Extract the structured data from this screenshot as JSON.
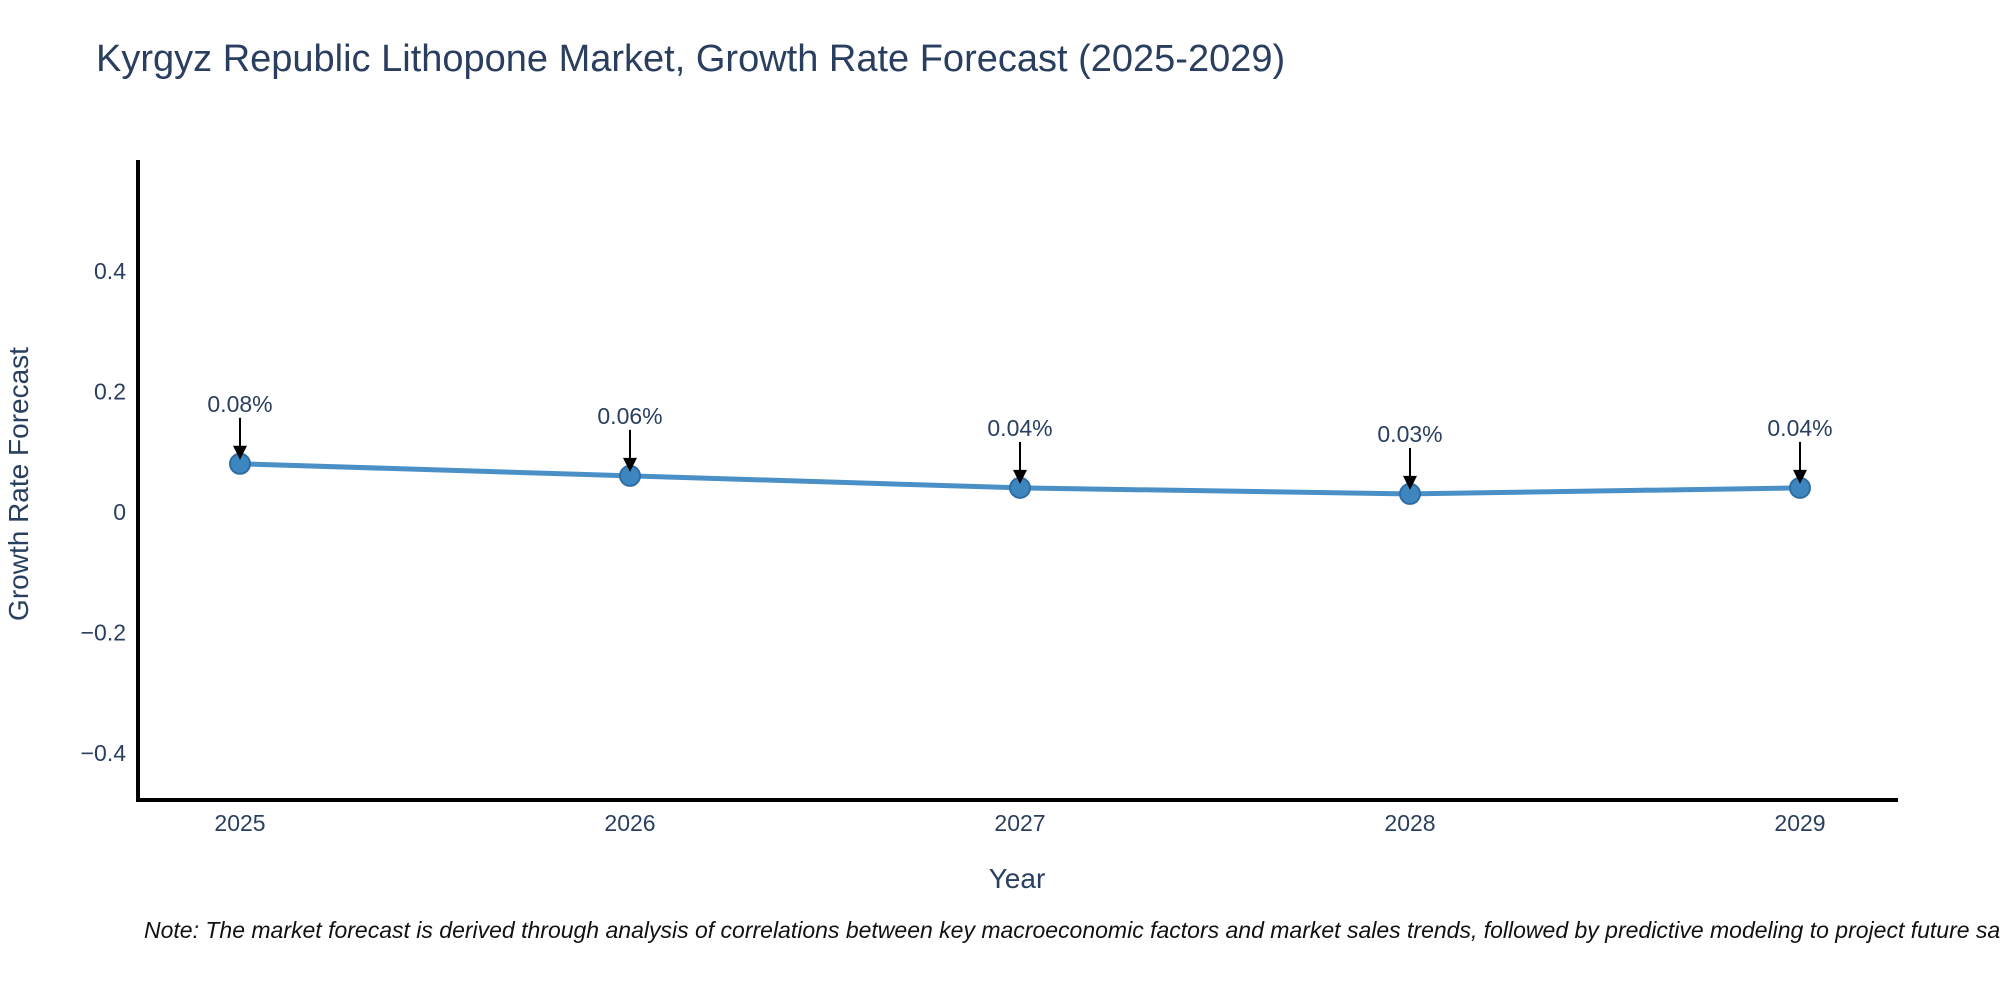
{
  "chart_data": {
    "type": "line",
    "title": "Kyrgyz Republic Lithopone Market, Growth Rate Forecast (2025-2029)",
    "xlabel": "Year",
    "ylabel": "Growth Rate Forecast",
    "categories": [
      "2025",
      "2026",
      "2027",
      "2028",
      "2029"
    ],
    "series": [
      {
        "name": "Growth Rate Forecast",
        "values": [
          0.08,
          0.06,
          0.04,
          0.03,
          0.04
        ],
        "point_labels": [
          "0.08%",
          "0.06%",
          "0.04%",
          "0.03%",
          "0.04%"
        ]
      }
    ],
    "y_ticks": {
      "values": [
        0.4,
        0.2,
        0,
        -0.2,
        -0.4
      ],
      "labels": [
        "0.4",
        "0.2",
        "0",
        "−0.2",
        "−0.4"
      ]
    },
    "ylim": [
      -0.48,
      0.58
    ],
    "grid": false,
    "legend": false,
    "annotation_style": "text-with-down-arrow",
    "colors": {
      "line": "#4a90c6",
      "marker": "#3d86bf",
      "marker_edge": "#2e6da4",
      "text": "#2a3f5f",
      "axis": "#000000",
      "annotation_arrow": "#000000"
    }
  },
  "note": "Note: The market forecast is derived through analysis of correlations between key macroeconomic factors and market sales trends, followed by predictive modeling to project future sales."
}
